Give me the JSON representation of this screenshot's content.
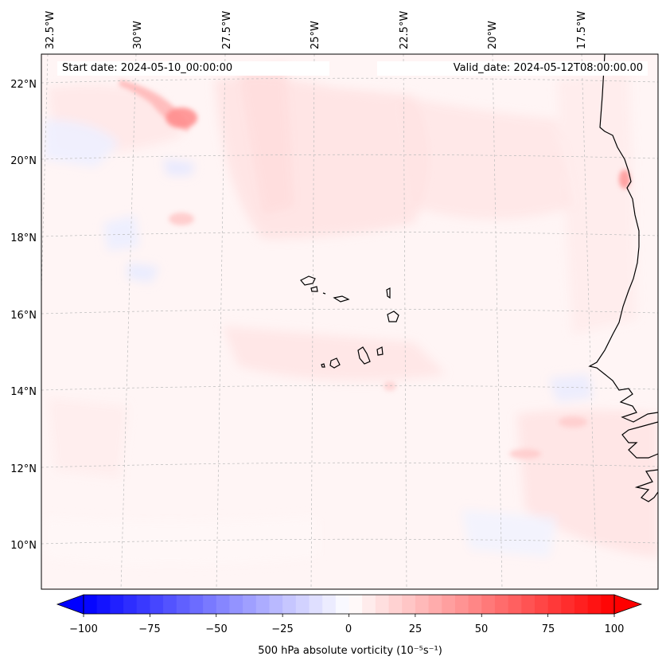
{
  "map": {
    "start_date_label": "Start date: 2024-05-10_00:00:00",
    "valid_date_label": "Valid_date: 2024-05-12T08:00:00.00",
    "lon_labels": [
      "32.5°W",
      "30°W",
      "27.5°W",
      "25°W",
      "22.5°W",
      "20°W",
      "17.5°W"
    ],
    "lat_labels": [
      "22°N",
      "20°N",
      "18°N",
      "16°N",
      "14°N",
      "12°N",
      "10°N"
    ],
    "colors": {
      "background_field": "#fff4f4",
      "coastline": "#000000",
      "gridline": "#bbbbbb"
    }
  },
  "colorbar": {
    "label": "500 hPa absolute vorticity (10⁻⁵s⁻¹)",
    "tick_labels": [
      "−100",
      "−75",
      "−50",
      "−25",
      "0",
      "25",
      "50",
      "75",
      "100"
    ],
    "min": -100,
    "max": 100,
    "step": 5,
    "low_color": "#0000ff",
    "mid_color": "#ffffff",
    "high_color": "#ff0000"
  }
}
